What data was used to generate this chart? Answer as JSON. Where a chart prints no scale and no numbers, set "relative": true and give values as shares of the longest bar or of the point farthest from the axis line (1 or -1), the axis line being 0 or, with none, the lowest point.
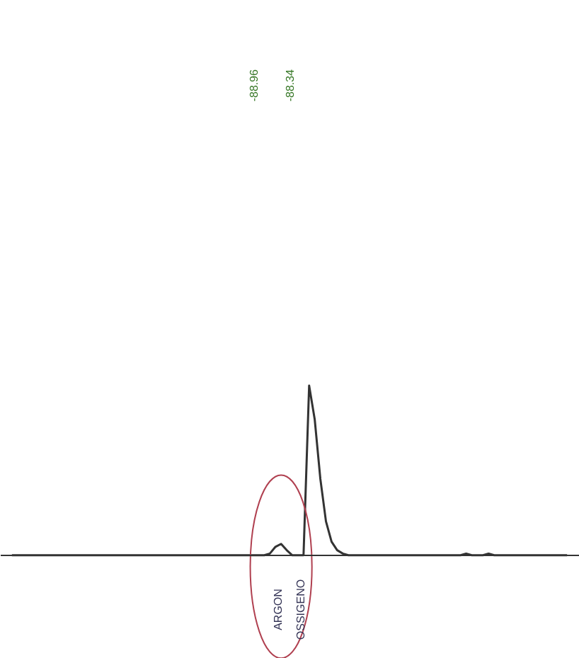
{
  "chart_data": {
    "type": "line",
    "relative": true,
    "categories": [
      null,
      null,
      null,
      null,
      null,
      null,
      null,
      null,
      null,
      null,
      null,
      null,
      null,
      null,
      null,
      null,
      null,
      null,
      null,
      null,
      null,
      null,
      null,
      null,
      null,
      null,
      null,
      null,
      null,
      null,
      null,
      null,
      null,
      null,
      null,
      null,
      null,
      null,
      null,
      null,
      null,
      null,
      null,
      null,
      null,
      null,
      null,
      null,
      null,
      null,
      null,
      null,
      null,
      null,
      null,
      null,
      null,
      null,
      null,
      null,
      null,
      null,
      null,
      null,
      null,
      null,
      null,
      null,
      null,
      null,
      null,
      null,
      null,
      null,
      null,
      null,
      null,
      null,
      null,
      null,
      null,
      null,
      null,
      null,
      null,
      null,
      null,
      null,
      null,
      null,
      null,
      null,
      null,
      null,
      null,
      null,
      null,
      null,
      null,
      null
    ],
    "series": [
      {
        "color": "#333333",
        "values": [
          0,
          0,
          0,
          0,
          0,
          0,
          0,
          0,
          0,
          0,
          0,
          0,
          0,
          0,
          0,
          0,
          0,
          0,
          0,
          0,
          0,
          0,
          0,
          0,
          0,
          0,
          0,
          0,
          0,
          0,
          0,
          0,
          0,
          0,
          0,
          0,
          0,
          0,
          0,
          0,
          0,
          0,
          0,
          0,
          0,
          0,
          0.01,
          0.05,
          0.067,
          0.03,
          0,
          0,
          0,
          1.0,
          0.8,
          0.45,
          0.2,
          0.08,
          0.03,
          0.01,
          0,
          0,
          0,
          0,
          0,
          0,
          0,
          0,
          0,
          0,
          0,
          0,
          0,
          0,
          0,
          0,
          0,
          0,
          0,
          0,
          0,
          0.01,
          0,
          0,
          0,
          0.01,
          0,
          0,
          0,
          0,
          0,
          0,
          0,
          0,
          0,
          0,
          0,
          0,
          0,
          0
        ]
      }
    ],
    "annotations": [
      "-88.96",
      "-88.34",
      "ARGON",
      "OSSIGENO"
    ]
  }
}
